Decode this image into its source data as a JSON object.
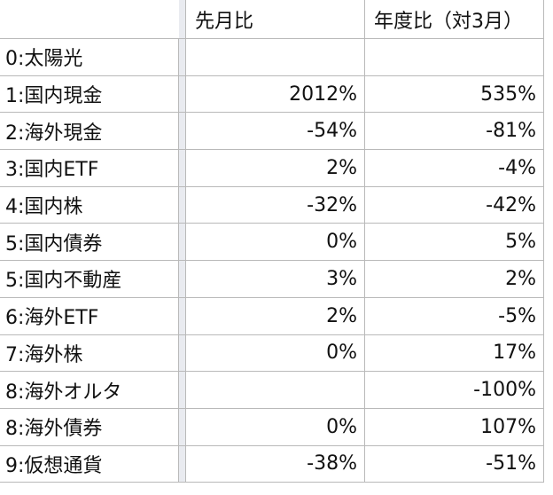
{
  "table": {
    "headers": {
      "label": "",
      "mom": "先月比",
      "yoy": "年度比（対3月）"
    },
    "rows": [
      {
        "label": "0:太陽光",
        "mom": "",
        "yoy": ""
      },
      {
        "label": "1:国内現金",
        "mom": "2012%",
        "yoy": "535%"
      },
      {
        "label": "2:海外現金",
        "mom": "-54%",
        "yoy": "-81%"
      },
      {
        "label": "3:国内ETF",
        "mom": "2%",
        "yoy": "-4%"
      },
      {
        "label": "4:国内株",
        "mom": "-32%",
        "yoy": "-42%"
      },
      {
        "label": "5:国内債券",
        "mom": "0%",
        "yoy": "5%"
      },
      {
        "label": "5:国内不動産",
        "mom": "3%",
        "yoy": "2%"
      },
      {
        "label": "6:海外ETF",
        "mom": "2%",
        "yoy": "-5%"
      },
      {
        "label": "7:海外株",
        "mom": "0%",
        "yoy": "17%"
      },
      {
        "label": "8:海外オルタ",
        "mom": "",
        "yoy": "-100%"
      },
      {
        "label": "8:海外債券",
        "mom": "0%",
        "yoy": "107%"
      },
      {
        "label": "9:仮想通貨",
        "mom": "-38%",
        "yoy": "-51%"
      }
    ]
  }
}
